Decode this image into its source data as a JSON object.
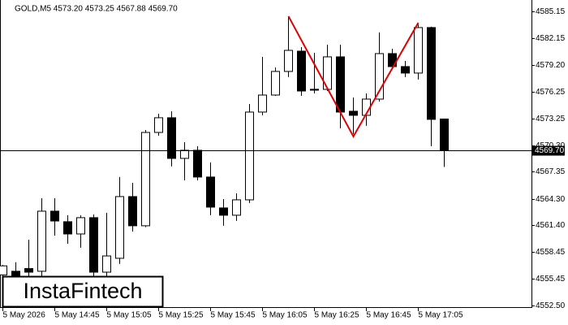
{
  "chart_data": {
    "type": "candlestick",
    "header": "GOLD,M5  4573.20 4573.25 4567.88 4569.70",
    "watermark": "InstaFintech",
    "categories": [
      "5 May 2026",
      null,
      null,
      null,
      "5 May 14:45",
      null,
      null,
      null,
      "5 May 15:05",
      null,
      null,
      null,
      "5 May 15:25",
      null,
      null,
      null,
      "5 May 15:45",
      null,
      null,
      null,
      "5 May 16:05",
      null,
      null,
      null,
      "5 May 16:25",
      null,
      null,
      null,
      "5 May 16:45",
      null,
      null,
      null,
      "5 May 17:05",
      null,
      null
    ],
    "open": [
      4555.9,
      4556.3,
      4556.6,
      4556.3,
      4562.97,
      4561.8,
      4560.44,
      4562.25,
      4556.2,
      4557.74,
      4564.59,
      4561.35,
      4571.71,
      4573.34,
      4568.83,
      4569.73,
      4566.76,
      4563.33,
      4562.52,
      4564.23,
      4573.97,
      4575.86,
      4578.48,
      4580.73,
      4576.5,
      4576.49,
      4580.1,
      4574.06,
      4573.61,
      4575.41,
      4580.46,
      4579.02,
      4578.3,
      4583.35,
      4573.2
    ],
    "high": [
      4557.0,
      4557.3,
      4559.8,
      4564.41,
      4564.41,
      4562.52,
      4562.52,
      4562.61,
      4562.79,
      4566.76,
      4566.12,
      4571.98,
      4573.79,
      4574.06,
      4570.63,
      4570.18,
      4568.38,
      4564.32,
      4564.95,
      4574.87,
      4580.1,
      4578.93,
      4584.61,
      4581.18,
      4580.55,
      4581.45,
      4581.45,
      4575.59,
      4576.04,
      4582.81,
      4581.0,
      4579.65,
      4583.71,
      4583.44,
      4573.25
    ],
    "low": [
      4555.0,
      4555.0,
      4555.5,
      4555.75,
      4560.26,
      4559.36,
      4558.91,
      4555.3,
      4555.75,
      4557.11,
      4560.71,
      4561.2,
      4571.35,
      4567.93,
      4566.39,
      4566.39,
      4562.52,
      4561.35,
      4561.89,
      4563.87,
      4573.61,
      4575.77,
      4577.85,
      4575.77,
      4576.04,
      4576.31,
      4572.17,
      4571.53,
      4572.44,
      4575.14,
      4578.75,
      4577.85,
      4577.58,
      4570.18,
      4567.88
    ],
    "close": [
      4556.9,
      4555.8,
      4556.2,
      4562.97,
      4561.88,
      4560.44,
      4562.25,
      4556.2,
      4558.0,
      4564.59,
      4561.35,
      4571.71,
      4573.34,
      4568.83,
      4569.73,
      4566.76,
      4563.42,
      4562.52,
      4564.23,
      4573.97,
      4575.86,
      4578.48,
      4580.82,
      4576.31,
      4576.4,
      4580.1,
      4573.97,
      4573.61,
      4575.41,
      4580.46,
      4579.02,
      4578.3,
      4583.35,
      4573.16,
      4569.7
    ],
    "ylim": [
      4552.32,
      4586.41
    ],
    "yticks": [
      4585.15,
      {
        "value": 4582.15,
        "label": "4582.15"
      },
      {
        "value": 4579.2,
        "label": "4579.20"
      },
      4576.25,
      4573.25,
      {
        "value": 4570.3,
        "label": "4570.30"
      },
      4567.35,
      {
        "value": 4564.3,
        "label": "4564.30"
      },
      {
        "value": 4561.4,
        "label": "4561.40"
      },
      4558.45,
      4555.45,
      {
        "value": 4552.5,
        "label": "4552.50"
      }
    ],
    "price_line": {
      "value": 4569.7,
      "label": "4569.70"
    },
    "pattern": {
      "color": "#e00000",
      "x": [
        22,
        27,
        32
      ],
      "values": [
        4584.61,
        4571.26,
        4583.89
      ]
    }
  }
}
